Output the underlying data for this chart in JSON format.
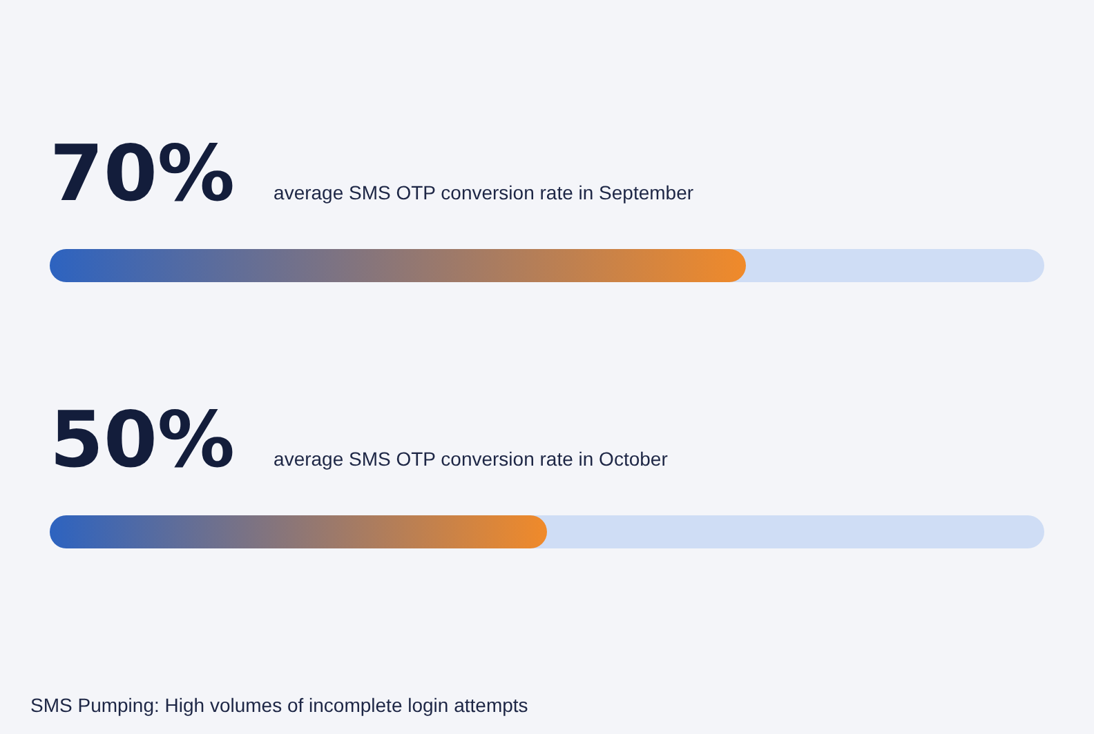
{
  "chart_data": {
    "type": "bar",
    "orientation": "horizontal",
    "categories": [
      "average SMS OTP conversion rate in September",
      "average SMS OTP conversion rate in October"
    ],
    "values": [
      70,
      50
    ],
    "value_labels": [
      "70%",
      "50%"
    ],
    "color": "#f08a2a",
    "xlim": [
      0,
      100
    ],
    "tick_labels": false,
    "annotations": [
      "SMS Pumping: High volumes of incomplete login attempts"
    ]
  }
}
